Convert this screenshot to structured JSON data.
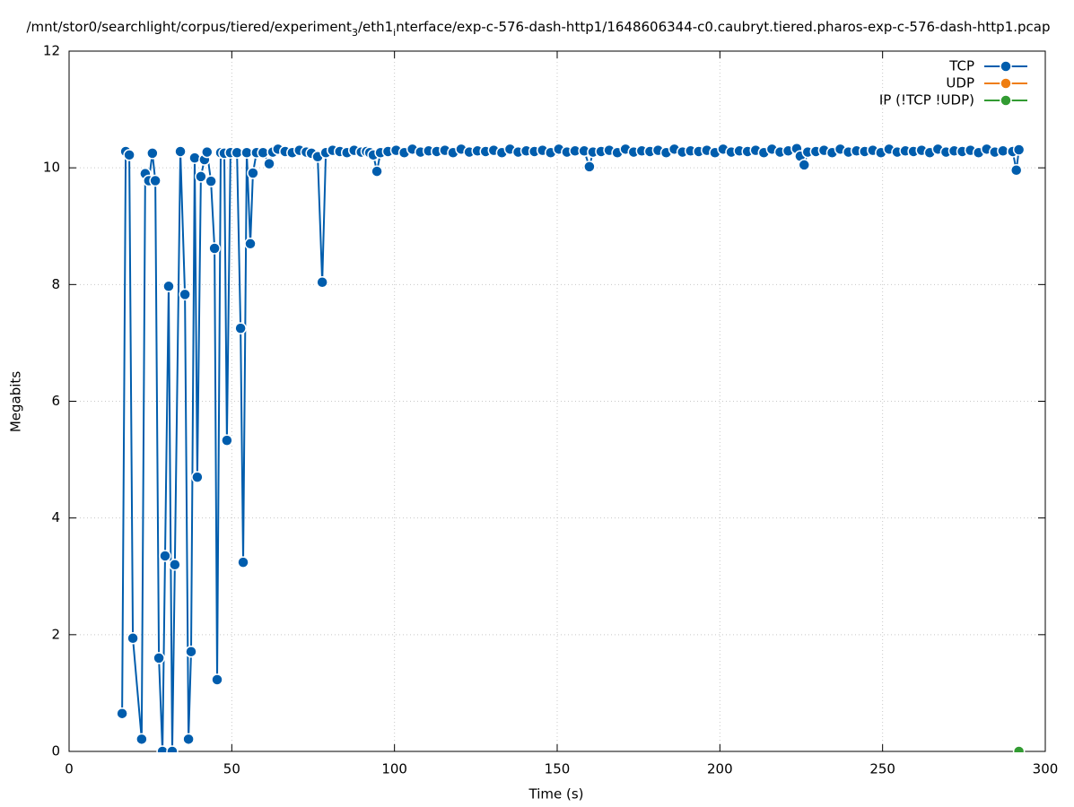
{
  "chart_data": {
    "type": "line",
    "title": [
      {
        "text": "/mnt/stor0/searchlight/corpus/tiered/experiment",
        "sub": false
      },
      {
        "text": "3",
        "sub": true
      },
      {
        "text": "/eth1",
        "sub": false
      },
      {
        "text": "i",
        "sub": true
      },
      {
        "text": "nterface/exp-c-576-dash-http1/1648606344-c0.caubryt.tiered.pharos-exp-c-576-dash-http1.pcap",
        "sub": false
      }
    ],
    "x_label": "Time (s)",
    "y_label": "Megabits",
    "xlim": [
      0,
      300
    ],
    "xticks": [
      0,
      50,
      100,
      150,
      200,
      250,
      300
    ],
    "ylim": [
      0,
      12
    ],
    "yticks": [
      0,
      2,
      4,
      6,
      8,
      10,
      12
    ],
    "grid": true,
    "legend": "top-right",
    "series": [
      {
        "name": "TCP",
        "color": "#005dad",
        "x": [
          16.3,
          17.4,
          18.5,
          19.6,
          22.3,
          23.4,
          24.5,
          25.6,
          26.5,
          27.6,
          28.7,
          29.5,
          30.6,
          31.7,
          32.5,
          34.2,
          35.6,
          36.7,
          37.5,
          38.6,
          39.4,
          40.5,
          41.6,
          42.4,
          43.6,
          44.7,
          45.5,
          46.6,
          47.7,
          48.5,
          49.6,
          51.6,
          52.7,
          53.5,
          54.6,
          55.7,
          56.5,
          57.6,
          59.6,
          61.5,
          62.6,
          64.2,
          66.4,
          68.6,
          70.8,
          72.9,
          74.5,
          76.4,
          77.8,
          78.9,
          81.0,
          83.2,
          85.4,
          87.6,
          89.8,
          91.4,
          92.4,
          93.5,
          94.6,
          95.7,
          98,
          100.5,
          103,
          105.5,
          108,
          110.5,
          113,
          115.5,
          118,
          120.5,
          123,
          125.5,
          128,
          130.5,
          133,
          135.5,
          138,
          140.5,
          143,
          145.5,
          148,
          150.5,
          153,
          155.5,
          158.3,
          159.9,
          161.0,
          163.5,
          166,
          168.5,
          171,
          173.5,
          176,
          178.5,
          181,
          183.5,
          186,
          188.5,
          191,
          193.5,
          196,
          198.5,
          201,
          203.5,
          206,
          208.5,
          211,
          213.5,
          216,
          218.5,
          221,
          223.6,
          224.7,
          225.9,
          227.0,
          229.5,
          232,
          234.5,
          237,
          239.5,
          242,
          244.5,
          247,
          249.5,
          252,
          254.5,
          257,
          259.5,
          262,
          264.5,
          267,
          269.5,
          272,
          274.5,
          277,
          279.5,
          282,
          284.5,
          287,
          290.0,
          291.1,
          291.9
        ],
        "values": [
          0.65,
          10.28,
          10.22,
          1.94,
          0.21,
          9.9,
          9.78,
          10.25,
          9.78,
          1.6,
          0,
          3.35,
          7.97,
          0,
          3.2,
          10.28,
          7.83,
          0.21,
          1.71,
          10.17,
          4.7,
          9.85,
          10.14,
          10.27,
          9.77,
          8.62,
          1.23,
          10.26,
          10.25,
          5.33,
          10.26,
          10.26,
          7.25,
          3.24,
          10.26,
          8.7,
          9.91,
          10.26,
          10.26,
          10.07,
          10.27,
          10.32,
          10.28,
          10.26,
          10.3,
          10.27,
          10.25,
          10.19,
          8.04,
          10.26,
          10.3,
          10.28,
          10.26,
          10.3,
          10.27,
          10.28,
          10.26,
          10.22,
          9.94,
          10.26,
          10.28,
          10.3,
          10.26,
          10.32,
          10.27,
          10.29,
          10.28,
          10.3,
          10.26,
          10.32,
          10.27,
          10.29,
          10.28,
          10.3,
          10.26,
          10.32,
          10.27,
          10.29,
          10.28,
          10.3,
          10.26,
          10.32,
          10.27,
          10.29,
          10.29,
          10.02,
          10.27,
          10.28,
          10.3,
          10.26,
          10.32,
          10.27,
          10.29,
          10.28,
          10.3,
          10.26,
          10.32,
          10.27,
          10.29,
          10.28,
          10.3,
          10.26,
          10.32,
          10.27,
          10.29,
          10.28,
          10.3,
          10.26,
          10.32,
          10.27,
          10.29,
          10.33,
          10.2,
          10.05,
          10.27,
          10.28,
          10.3,
          10.26,
          10.32,
          10.27,
          10.29,
          10.28,
          10.3,
          10.26,
          10.32,
          10.27,
          10.29,
          10.28,
          10.3,
          10.26,
          10.32,
          10.27,
          10.29,
          10.28,
          10.3,
          10.26,
          10.32,
          10.27,
          10.29,
          10.28,
          9.96,
          10.31
        ]
      },
      {
        "name": "UDP",
        "color": "#ef7d10",
        "x": [],
        "values": []
      },
      {
        "name": "IP (!TCP  !UDP)",
        "color": "#329b32",
        "x": [
          291.9
        ],
        "values": [
          0
        ]
      }
    ]
  }
}
